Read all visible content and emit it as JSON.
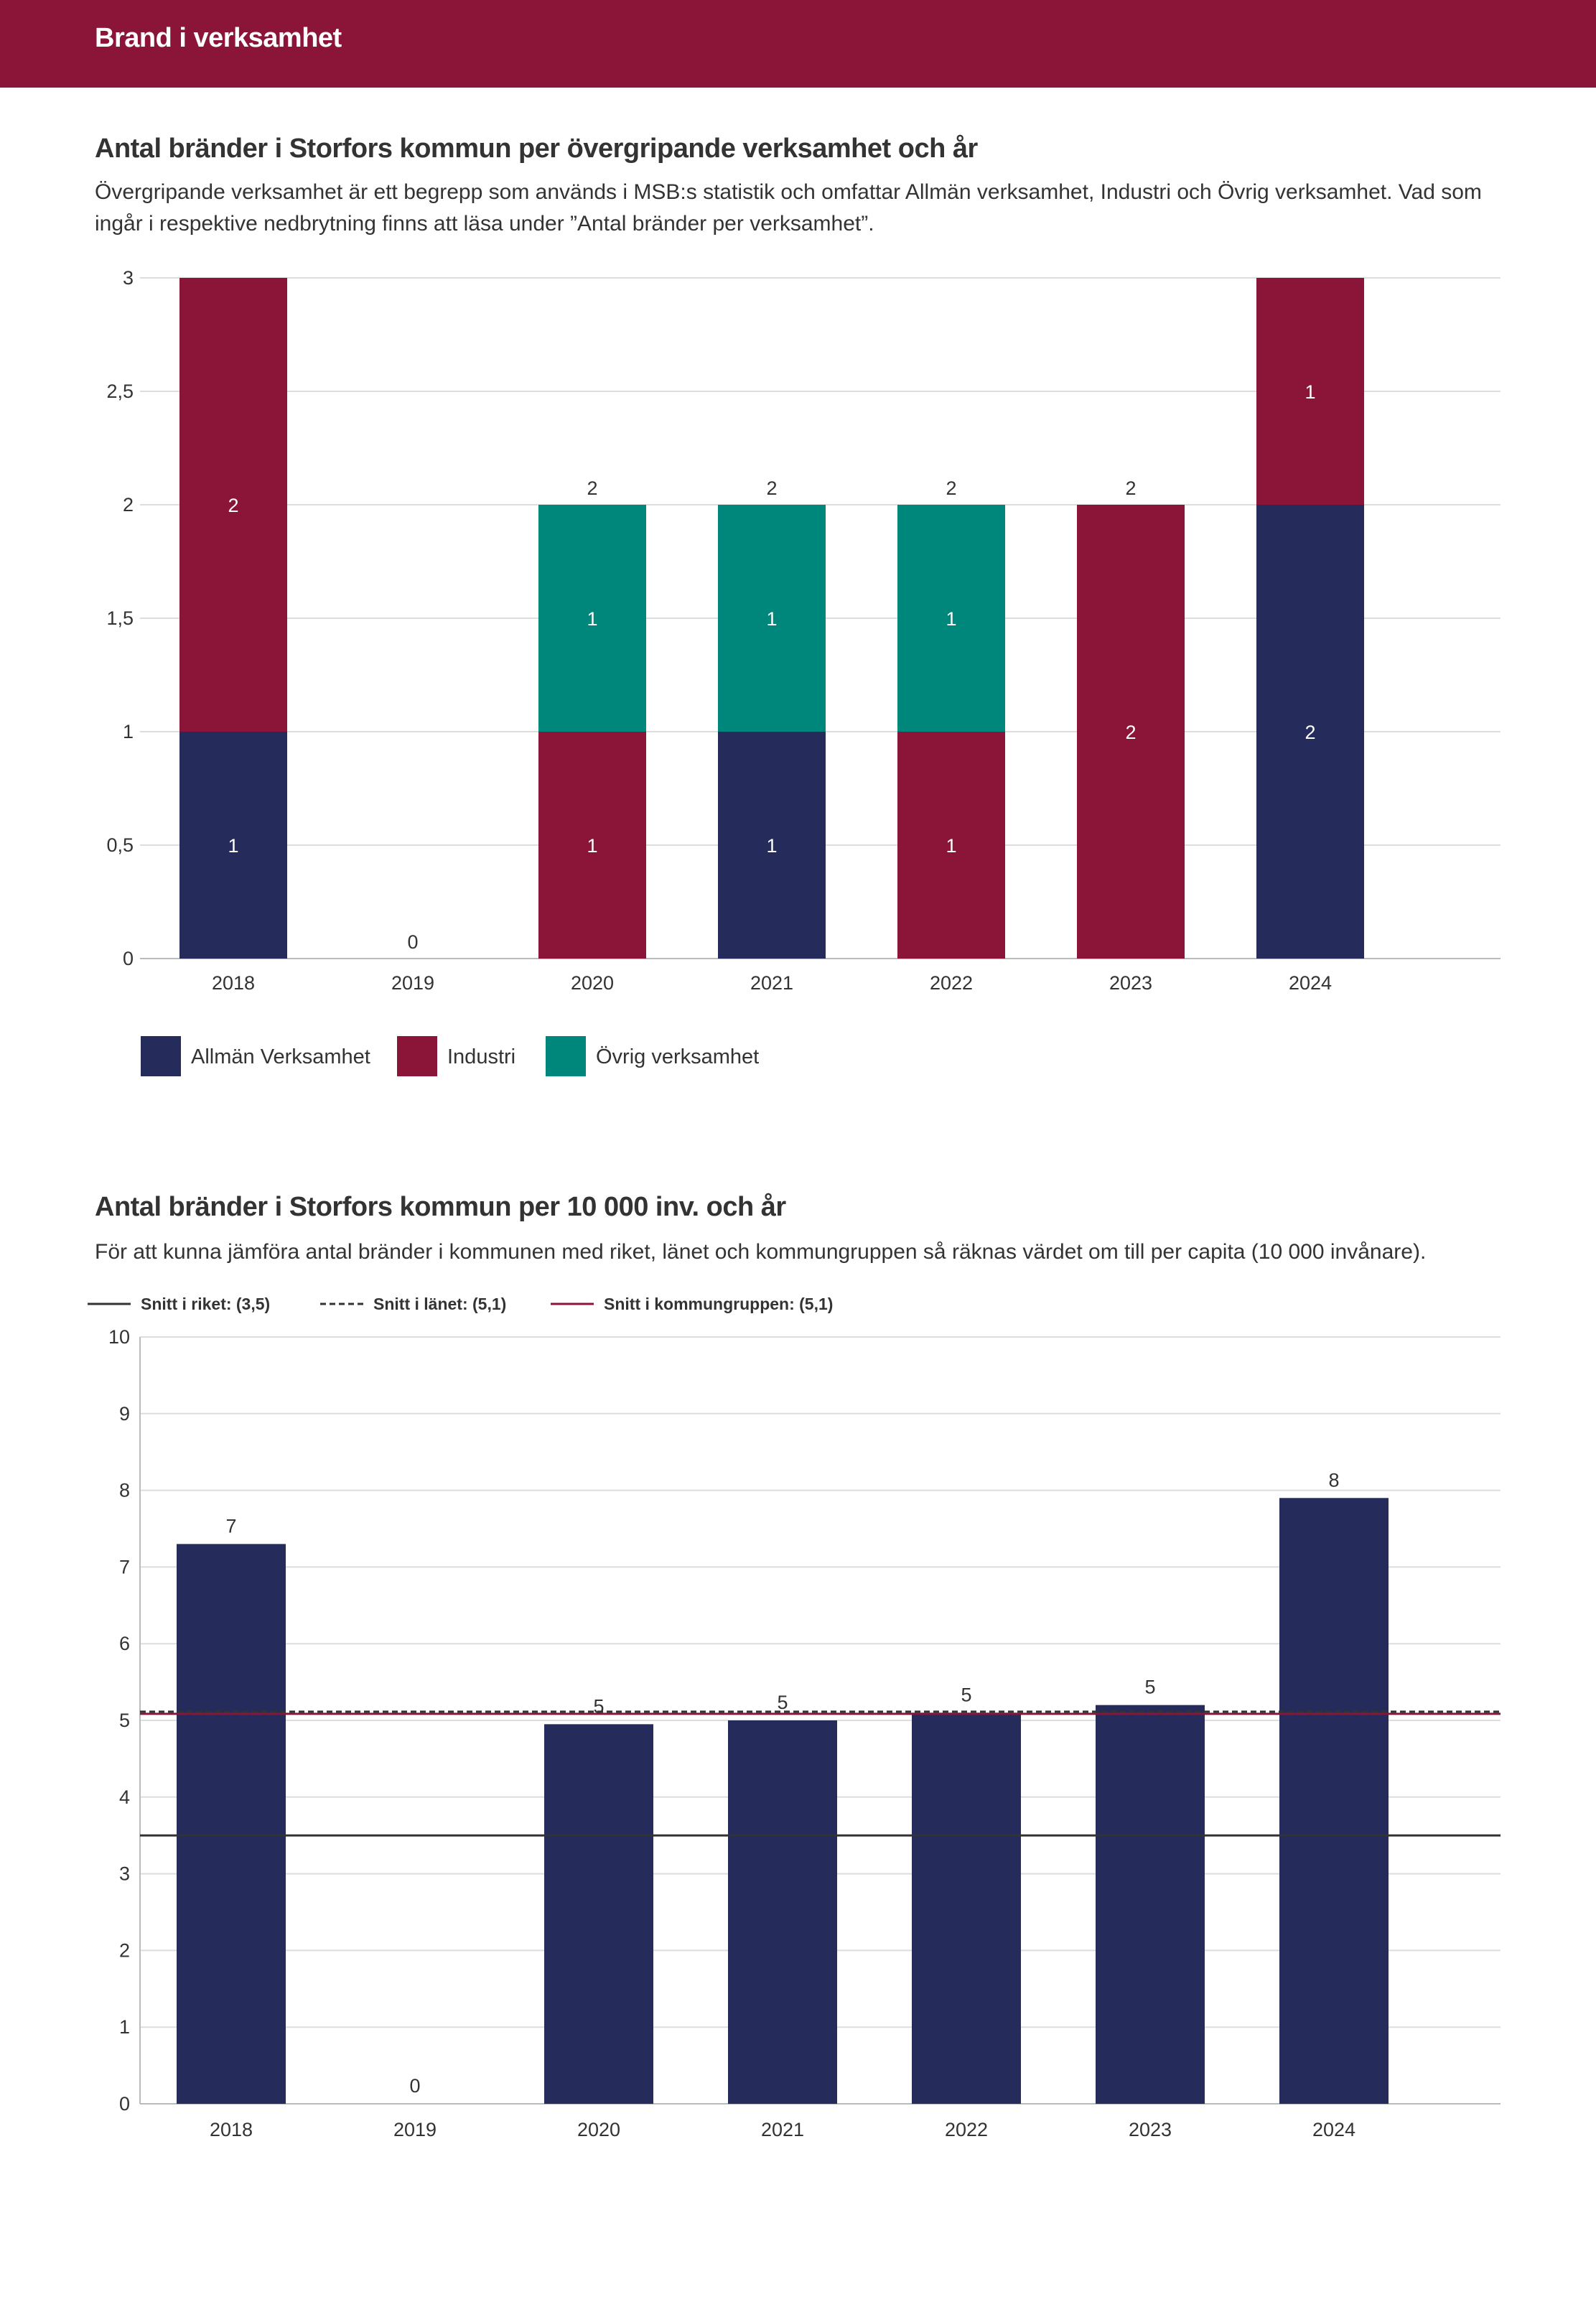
{
  "header": {
    "title": "Brand i verksamhet"
  },
  "colors": {
    "header_bg": "#8b1538",
    "allman": "#252c5c",
    "industri": "#8b1538",
    "ovrig": "#00877b",
    "grid": "#dddddd",
    "text": "#333333"
  },
  "section1": {
    "title": "Antal bränder i Storfors kommun per övergripande verksamhet och år",
    "description": "Övergripande verksamhet är ett begrepp som används i MSB:s statistik och omfattar Allmän verksamhet, Industri och Övrig verksamhet. Vad som ingår i respektive nedbrytning finns att läsa under ”Antal bränder per verksamhet”."
  },
  "section2": {
    "title": "Antal bränder i Storfors kommun per 10 000 inv. och år",
    "description": "För att kunna jämföra antal bränder i kommunen med riket, länet och kommungruppen så räknas värdet om till per capita (10 000 invånare)."
  },
  "chart_data": [
    {
      "type": "bar",
      "stacked": true,
      "categories": [
        "2018",
        "2019",
        "2020",
        "2021",
        "2022",
        "2023",
        "2024"
      ],
      "series": [
        {
          "name": "Allmän Verksamhet",
          "color": "#252c5c",
          "values": [
            1,
            0,
            0,
            1,
            0,
            0,
            2
          ]
        },
        {
          "name": "Industri",
          "color": "#8b1538",
          "values": [
            2,
            0,
            1,
            0,
            1,
            2,
            1
          ]
        },
        {
          "name": "Övrig verksamhet",
          "color": "#00877b",
          "values": [
            0,
            0,
            1,
            1,
            1,
            0,
            0
          ]
        }
      ],
      "totals": [
        3,
        0,
        2,
        2,
        2,
        2,
        3
      ],
      "y_ticks": [
        "0",
        "0,5",
        "1",
        "1,5",
        "2",
        "2,5",
        "3"
      ],
      "ylim": [
        0,
        3
      ],
      "legend_position": "bottom-left"
    },
    {
      "type": "bar",
      "categories": [
        "2018",
        "2019",
        "2020",
        "2021",
        "2022",
        "2023",
        "2024"
      ],
      "values": [
        7.3,
        0,
        4.95,
        5.0,
        5.1,
        5.2,
        7.9
      ],
      "value_labels": [
        "7",
        "0",
        "5",
        "5",
        "5",
        "5",
        "8"
      ],
      "color": "#252c5c",
      "y_ticks": [
        "0",
        "1",
        "2",
        "3",
        "4",
        "5",
        "6",
        "7",
        "8",
        "9",
        "10"
      ],
      "ylim": [
        0,
        10
      ],
      "reference_lines": [
        {
          "label": "Snitt i riket: (3,5)",
          "value": 3.5,
          "color": "#333333",
          "style": "solid"
        },
        {
          "label": "Snitt i länet: (5,1)",
          "value": 5.1,
          "color": "#333333",
          "style": "dashed"
        },
        {
          "label": "Snitt i kommungruppen: (5,1)",
          "value": 5.1,
          "color": "#8b1538",
          "style": "solid"
        }
      ],
      "legend_position": "top-left"
    }
  ]
}
